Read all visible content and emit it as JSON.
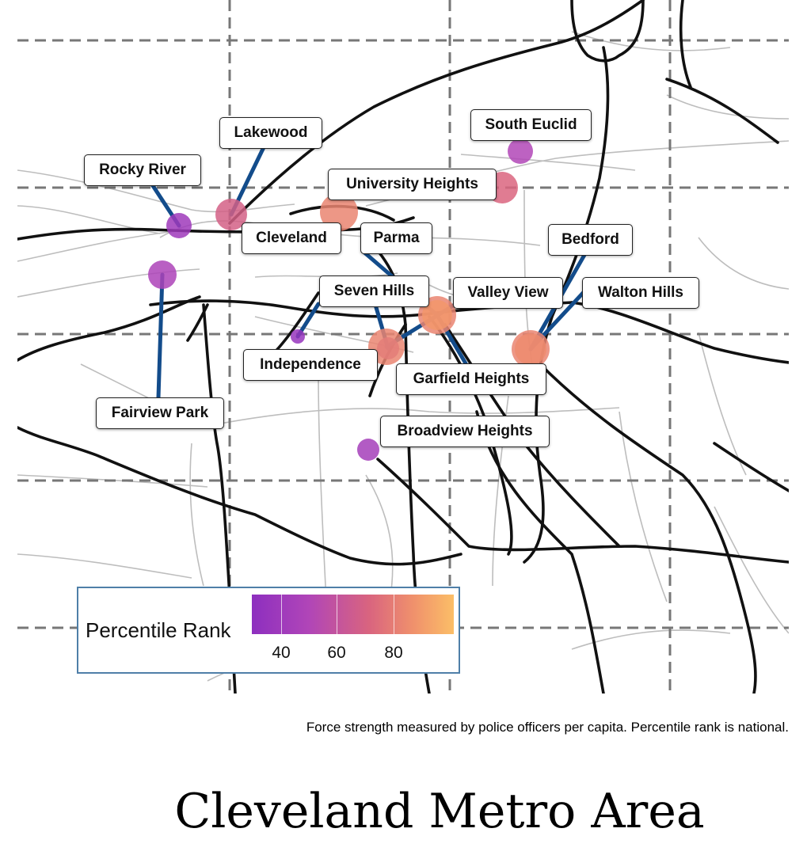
{
  "title": "Cleveland Metro Area",
  "caption": "Force strength measured by police officers per capita. Percentile rank is national.",
  "legend": {
    "title": "Percentile Rank",
    "ticks": [
      "40",
      "60",
      "80"
    ],
    "color_low": "#8d2fbf",
    "color_high": "#fbbe67"
  },
  "colors": {
    "leader_line": "#134c8b",
    "grid_dash": "#777777",
    "highway": "#111111",
    "road": "#bdbdbd"
  },
  "cities": [
    {
      "name": "Rocky River",
      "percentile": 40
    },
    {
      "name": "Lakewood",
      "percentile": 68
    },
    {
      "name": "Cleveland",
      "percentile": 82
    },
    {
      "name": "University Heights",
      "percentile": 71
    },
    {
      "name": "South Euclid",
      "percentile": 50
    },
    {
      "name": "Parma",
      "percentile": 82
    },
    {
      "name": "Fairview Park",
      "percentile": 48
    },
    {
      "name": "Seven Hills",
      "percentile": 58
    },
    {
      "name": "Independence",
      "percentile": 35
    },
    {
      "name": "Valley View",
      "percentile": 82
    },
    {
      "name": "Garfield Heights",
      "percentile": 88
    },
    {
      "name": "Bedford",
      "percentile": 82
    },
    {
      "name": "Walton Hills",
      "percentile": 84
    },
    {
      "name": "Broadview Heights",
      "percentile": 43
    }
  ]
}
